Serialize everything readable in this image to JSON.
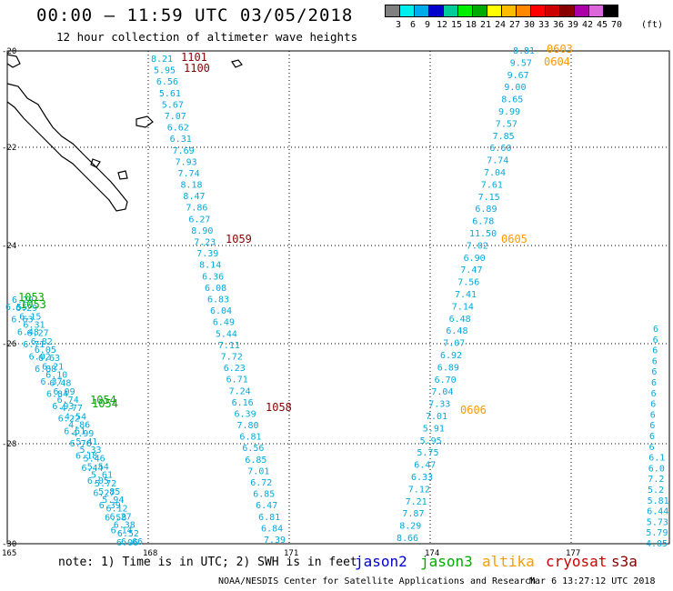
{
  "title": "00:00 – 11:59 UTC 03/05/2018",
  "subtitle": "12 hour collection of altimeter wave heights",
  "legend": {
    "values": [
      "3",
      "6",
      "9",
      "12",
      "15",
      "18",
      "21",
      "24",
      "27",
      "30",
      "33",
      "36",
      "39",
      "42",
      "45",
      "70"
    ],
    "unit": "(ft)",
    "colors": [
      "#808080",
      "#00eeee",
      "#00aaee",
      "#0000cc",
      "#00cc99",
      "#00ee00",
      "#00aa00",
      "#ffff00",
      "#ffbb00",
      "#ff8800",
      "#ff0000",
      "#cc0000",
      "#880000",
      "#aa00aa",
      "#dd66dd",
      "#000000"
    ]
  },
  "axes": {
    "lat_labels": [
      "-20",
      "-22",
      "-24",
      "-26",
      "-28",
      "-30"
    ],
    "lon_labels": [
      "165",
      "168",
      "171",
      "174",
      "177"
    ]
  },
  "tracks": [
    {
      "name": "track-1",
      "color": "#00aadd",
      "values": [
        "8.21",
        "5.95",
        "6.56",
        "5.61",
        "5.67",
        "7.07",
        "6.62",
        "6.31",
        "7.69",
        "7.93",
        "7.74",
        "8.18",
        "8.47",
        "7.86",
        "6.27",
        "8.90",
        "7.23",
        "7.39",
        "8.14",
        "6.36",
        "6.08",
        "6.83",
        "6.04",
        "6.49",
        "5.44",
        "7.11",
        "7.72",
        "6.23",
        "6.71",
        "7.24",
        "6.16",
        "6.39",
        "7.80",
        "6.81",
        "6.56",
        "6.85",
        "7.01",
        "6.72",
        "6.85",
        "6.47",
        "6.81",
        "6.84",
        "7.39"
      ]
    },
    {
      "name": "track-2",
      "color": "#00aadd",
      "values": [
        "8.81",
        "9.57",
        "9.67",
        "9.00",
        "8.65",
        "9.99",
        "7.57",
        "7.85",
        "6.60",
        "7.74",
        "7.04",
        "7.61",
        "7.15",
        "6.89",
        "6.78",
        "11.50",
        "7.02",
        "6.90",
        "7.47",
        "7.56",
        "7.41",
        "7.14",
        "6.48",
        "6.48",
        "7.07",
        "6.92",
        "6.89",
        "6.70",
        "7.04",
        "7.33",
        "7.01",
        "5.91",
        "5.95",
        "5.75",
        "6.47",
        "6.33",
        "7.12",
        "7.21",
        "7.87",
        "8.29",
        "8.66"
      ]
    },
    {
      "name": "track-3",
      "color": "#00aadd",
      "values": [
        "6.29",
        "6.29",
        "6.15",
        "6.31",
        "6.27",
        "6.82",
        "6.05",
        "6.63",
        "6.21",
        "6.10",
        "6.48",
        "6.09",
        "6.74",
        "4.77",
        "4.54",
        "4.86",
        "4.99",
        "5.41",
        "5.33",
        "5.46",
        "5.54",
        "5.61",
        "5.72",
        "5.85",
        "5.94",
        "6.12",
        "6.27",
        "6.38",
        "6.52",
        "6.66"
      ]
    },
    {
      "name": "track-4",
      "color": "#00aadd",
      "values": [
        "6.55",
        "6.63",
        "6.48",
        "6.71",
        "6.02",
        "6.88",
        "6.37",
        "6.84",
        "6.93",
        "6.22",
        "6.51",
        "6.76",
        "6.18",
        "6.44",
        "6.05",
        "6.27",
        "6.39",
        "6.58",
        "6.14",
        "6.06"
      ]
    },
    {
      "name": "track-5",
      "color": "#00aadd",
      "values": [
        "6",
        "6",
        "6",
        "6",
        "6",
        "6",
        "6",
        "6",
        "6",
        "6",
        "6",
        "6",
        "6.1",
        "6.0",
        "7.2",
        "5.2",
        "5.81",
        "6.44",
        "5.73",
        "5.79",
        "4.05"
      ]
    }
  ],
  "times": [
    {
      "label": "1101",
      "color": "#880000"
    },
    {
      "label": "1100",
      "color": "#880000"
    },
    {
      "label": "1059",
      "color": "#880000"
    },
    {
      "label": "1058",
      "color": "#880000"
    },
    {
      "label": "1053",
      "color": "#00aa00"
    },
    {
      "label": "1053",
      "color": "#00aa00"
    },
    {
      "label": "1054",
      "color": "#00aa00"
    },
    {
      "label": "1054",
      "color": "#00aa00"
    },
    {
      "label": "0603",
      "color": "#ff9900"
    },
    {
      "label": "0604",
      "color": "#ff9900"
    },
    {
      "label": "0605",
      "color": "#ff9900"
    },
    {
      "label": "0606",
      "color": "#ff9900"
    }
  ],
  "note": "note: 1) Time is in UTC; 2) SWH is in feet",
  "satellites": [
    {
      "name": "jason2",
      "color": "#0000cc"
    },
    {
      "name": "jason3",
      "color": "#00aa00"
    },
    {
      "name": "altika",
      "color": "#ff9900"
    },
    {
      "name": "cryosat",
      "color": "#cc0000"
    },
    {
      "name": "s3a",
      "color": "#880000"
    }
  ],
  "footer_left": "NOAA/NESDIS Center for Satellite Applications and Research",
  "footer_right": "Mar  6 13:27:12 UTC 2018"
}
